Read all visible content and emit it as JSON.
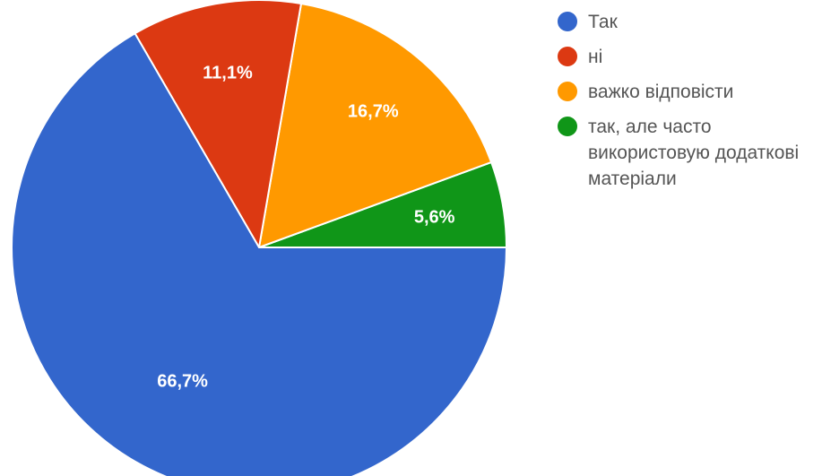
{
  "chart_data": {
    "type": "pie",
    "slices": [
      {
        "label": "так, але часто використовую додаткові матеріали",
        "value": 5.6,
        "value_label": "5,6%",
        "color": "#109618"
      },
      {
        "label": "важко відповісти",
        "value": 16.7,
        "value_label": "16,7%",
        "color": "#ff9900"
      },
      {
        "label": "ні",
        "value": 11.1,
        "value_label": "11,1%",
        "color": "#dc3912"
      },
      {
        "label": "Так",
        "value": 66.7,
        "value_label": "66,7%",
        "color": "#3366cc"
      }
    ],
    "legend": {
      "placement": "right",
      "items": [
        {
          "label": "Так",
          "color": "#3366cc"
        },
        {
          "label": "ні",
          "color": "#dc3912"
        },
        {
          "label": "важко відповісти",
          "color": "#ff9900"
        },
        {
          "label": "так, але часто використовую додаткові матеріали",
          "color": "#109618"
        }
      ]
    }
  }
}
